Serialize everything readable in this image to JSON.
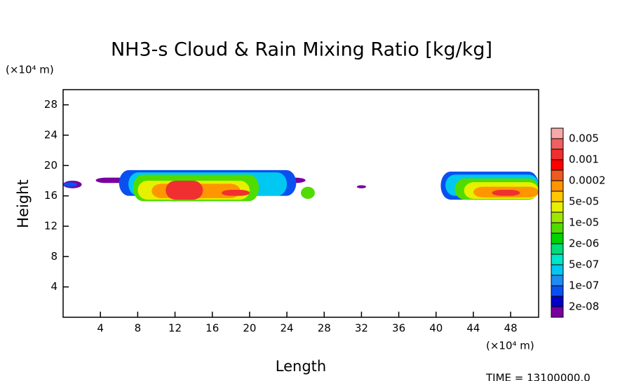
{
  "chart_data": {
    "type": "contour",
    "title": "NH3-s Cloud & Rain Mixing Ratio [kg/kg]",
    "xlabel": "Length",
    "ylabel": "Height",
    "xunit": "(×10⁴ m)",
    "yunit": "(×10⁴ m)",
    "time_label": "TIME =  13100000.0",
    "xlim": [
      0,
      51
    ],
    "ylim": [
      0,
      30
    ],
    "xticks": [
      4,
      8,
      12,
      16,
      20,
      24,
      28,
      32,
      36,
      40,
      44,
      48
    ],
    "yticks": [
      4,
      8,
      12,
      16,
      20,
      24,
      28
    ],
    "colorbar": {
      "colors": [
        "#f8a8a8",
        "#f06060",
        "#f03030",
        "#ff0000",
        "#f05a1e",
        "#ff9600",
        "#ffc800",
        "#e6f000",
        "#a0e600",
        "#50dc00",
        "#00d200",
        "#00dc78",
        "#00e6c8",
        "#00c8f0",
        "#1e8cf0",
        "#0a50f0",
        "#0000c8",
        "#7800a0"
      ],
      "labels": [
        0.005,
        0.001,
        0.0002,
        {
          "value": 5e-05,
          "label": "5e-05"
        },
        {
          "value": 1e-05,
          "label": "1e-05"
        },
        {
          "value": 2e-06,
          "label": "2e-06"
        },
        {
          "value": 5e-07,
          "label": "5e-07"
        },
        {
          "value": 1e-07,
          "label": "1e-07"
        },
        {
          "value": 2e-08,
          "label": "2e-08"
        }
      ]
    },
    "regions": [
      {
        "x": [
          3.5,
          26
        ],
        "y": [
          17.7,
          18.4
        ],
        "color": "#7800a0"
      },
      {
        "x": [
          0,
          2
        ],
        "y": [
          17,
          18
        ],
        "color": "#7800a0"
      },
      {
        "x": [
          0,
          1.5
        ],
        "y": [
          17.2,
          17.8
        ],
        "color": "#0a50f0"
      },
      {
        "x": [
          31.5,
          32.5
        ],
        "y": [
          17,
          17.4
        ],
        "color": "#7800a0"
      },
      {
        "x": [
          6,
          25
        ],
        "y": [
          16,
          19.4
        ],
        "color": "#0a50f0"
      },
      {
        "x": [
          7,
          24
        ],
        "y": [
          16,
          19.1
        ],
        "color": "#00c8f0"
      },
      {
        "x": [
          7.5,
          21
        ],
        "y": [
          15.3,
          18.8
        ],
        "color": "#50dc00"
      },
      {
        "x": [
          25.5,
          27
        ],
        "y": [
          15.6,
          17.2
        ],
        "color": "#50dc00"
      },
      {
        "x": [
          8,
          20
        ],
        "y": [
          15.5,
          18
        ],
        "color": "#e6f000"
      },
      {
        "x": [
          9.5,
          19
        ],
        "y": [
          15.7,
          17.6
        ],
        "color": "#ff9600"
      },
      {
        "x": [
          11,
          15
        ],
        "y": [
          15.5,
          18
        ],
        "color": "#f03030"
      },
      {
        "x": [
          17,
          20
        ],
        "y": [
          16,
          16.8
        ],
        "color": "#f03030"
      },
      {
        "x": [
          40.5,
          51
        ],
        "y": [
          15.5,
          19.2
        ],
        "color": "#0a50f0"
      },
      {
        "x": [
          41,
          51
        ],
        "y": [
          16,
          18.8
        ],
        "color": "#00c8f0"
      },
      {
        "x": [
          42,
          51
        ],
        "y": [
          15.5,
          18.3
        ],
        "color": "#50dc00"
      },
      {
        "x": [
          43,
          51
        ],
        "y": [
          15.6,
          17.8
        ],
        "color": "#e6f000"
      },
      {
        "x": [
          44,
          51
        ],
        "y": [
          15.8,
          17.2
        ],
        "color": "#ff9600"
      },
      {
        "x": [
          46,
          49
        ],
        "y": [
          16,
          16.8
        ],
        "color": "#f03030"
      }
    ]
  }
}
